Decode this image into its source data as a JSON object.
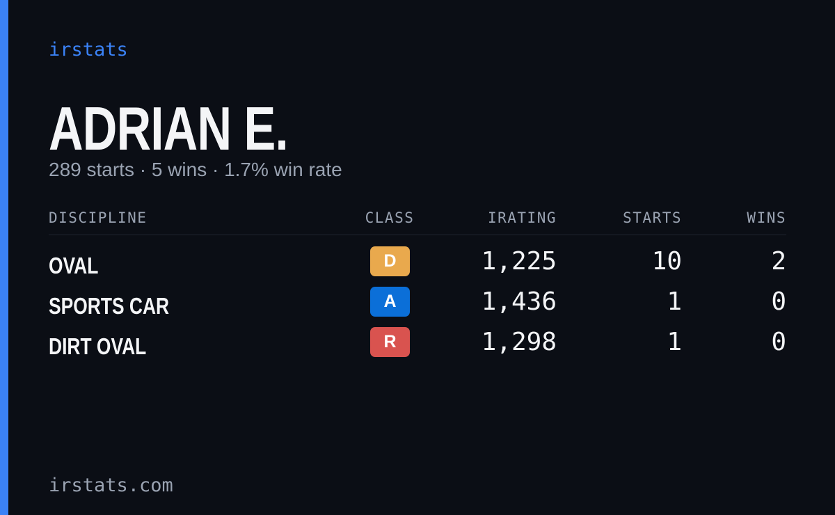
{
  "header": {
    "brand": "irstats",
    "name": "ADRIAN E.",
    "summary": "289 starts · 5 wins · 1.7% win rate"
  },
  "table": {
    "columns": [
      "DISCIPLINE",
      "CLASS",
      "IRATING",
      "STARTS",
      "WINS"
    ],
    "rows": [
      {
        "discipline": "OVAL",
        "class": "D",
        "class_color": "#e9a94d",
        "irating": "1,225",
        "starts": "10",
        "wins": "2"
      },
      {
        "discipline": "SPORTS CAR",
        "class": "A",
        "class_color": "#0b6fd8",
        "irating": "1,436",
        "starts": "1",
        "wins": "0"
      },
      {
        "discipline": "DIRT OVAL",
        "class": "R",
        "class_color": "#d9534f",
        "irating": "1,298",
        "starts": "1",
        "wins": "0"
      }
    ]
  },
  "footer": {
    "url": "irstats.com"
  }
}
